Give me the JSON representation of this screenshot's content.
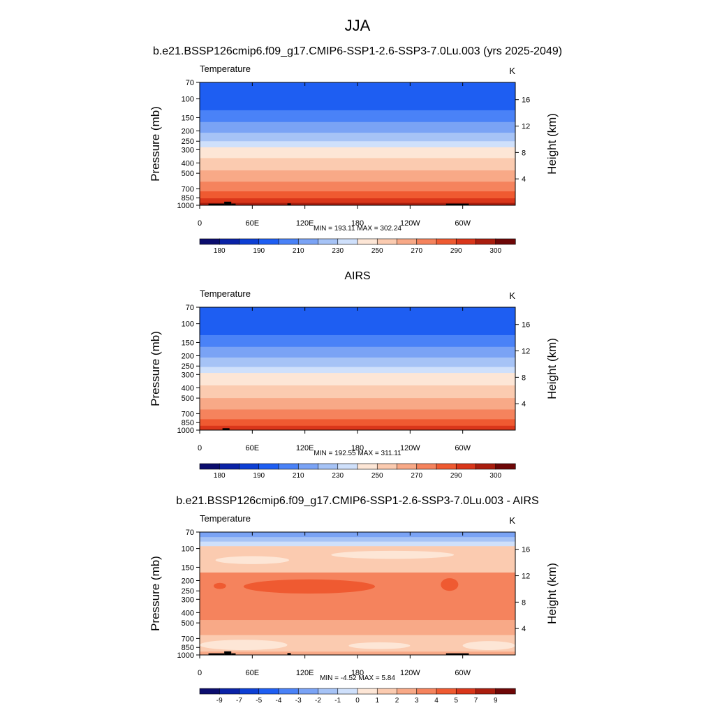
{
  "figure": {
    "title": "JJA"
  },
  "axes_common": {
    "ylabel_left": "Pressure (mb)",
    "ylabel_right": "Height (km)",
    "pressure_ticks": [
      70,
      100,
      150,
      200,
      250,
      300,
      400,
      500,
      700,
      850,
      1000
    ],
    "height_ticks": [
      4,
      8,
      12,
      16
    ],
    "x_ticks": [
      "0",
      "60E",
      "120E",
      "180",
      "120W",
      "60W"
    ],
    "x_range_deg": [
      0,
      360
    ]
  },
  "chart_data": [
    {
      "type": "heatmap",
      "title": "b.e21.BSSP126cmip6.f09_g17.CMIP6-SSP1-2.6-SSP3-7.0Lu.003 (yrs 2025-2049)",
      "left_label": "Temperature",
      "right_label": "K",
      "stats": "MIN = 193.11  MAX = 302.24",
      "colorbar": {
        "colors": [
          "#0b0d6e",
          "#0a22a6",
          "#0d3fd4",
          "#1e5ef2",
          "#4a82f7",
          "#7aa3f5",
          "#a6c3f6",
          "#cfe0fb",
          "#fde6d6",
          "#fbcbb0",
          "#f8a987",
          "#f5835d",
          "#ef5a31",
          "#d9361a",
          "#a91d0e",
          "#6e0707"
        ],
        "labels": [
          "180",
          "190",
          "210",
          "230",
          "250",
          "270",
          "290",
          "300"
        ]
      },
      "bands": [
        {
          "p": 70,
          "color": "#1e5ef2"
        },
        {
          "p": 128,
          "color": "#4a82f7"
        },
        {
          "p": 165,
          "color": "#7aa3f5"
        },
        {
          "p": 208,
          "color": "#a6c3f6"
        },
        {
          "p": 250,
          "color": "#cfe0fb"
        },
        {
          "p": 285,
          "color": "#fde6d6"
        },
        {
          "p": 360,
          "color": "#fbcbb0"
        },
        {
          "p": 470,
          "color": "#f8a987"
        },
        {
          "p": 600,
          "color": "#f5835d"
        },
        {
          "p": 740,
          "color": "#ef5a31"
        },
        {
          "p": 860,
          "color": "#d9361a"
        },
        {
          "p": 950,
          "color": "#a91d0e"
        }
      ],
      "blobs": [],
      "terrain": [
        {
          "lon": [
            10,
            28
          ],
          "ptop": 965
        },
        {
          "lon": [
            28,
            36
          ],
          "ptop": 925
        },
        {
          "lon": [
            36,
            41
          ],
          "ptop": 965
        },
        {
          "lon": [
            100,
            104
          ],
          "ptop": 960
        },
        {
          "lon": [
            281,
            307
          ],
          "ptop": 965
        }
      ]
    },
    {
      "type": "heatmap",
      "title": "AIRS",
      "left_label": "Temperature",
      "right_label": "K",
      "stats": "MIN = 192.55  MAX = 311.11",
      "colorbar": {
        "colors": [
          "#0b0d6e",
          "#0a22a6",
          "#0d3fd4",
          "#1e5ef2",
          "#4a82f7",
          "#7aa3f5",
          "#a6c3f6",
          "#cfe0fb",
          "#fde6d6",
          "#fbcbb0",
          "#f8a987",
          "#f5835d",
          "#ef5a31",
          "#d9361a",
          "#a91d0e",
          "#6e0707"
        ],
        "labels": [
          "180",
          "190",
          "210",
          "230",
          "250",
          "270",
          "290",
          "300"
        ]
      },
      "bands": [
        {
          "p": 70,
          "color": "#1e5ef2"
        },
        {
          "p": 128,
          "color": "#4a82f7"
        },
        {
          "p": 165,
          "color": "#7aa3f5"
        },
        {
          "p": 208,
          "color": "#a6c3f6"
        },
        {
          "p": 255,
          "color": "#cfe0fb"
        },
        {
          "p": 290,
          "color": "#fde6d6"
        },
        {
          "p": 380,
          "color": "#fbcbb0"
        },
        {
          "p": 500,
          "color": "#f8a987"
        },
        {
          "p": 640,
          "color": "#f5835d"
        },
        {
          "p": 790,
          "color": "#ef5a31"
        },
        {
          "p": 910,
          "color": "#d9361a"
        }
      ],
      "blobs": [],
      "terrain": [
        {
          "lon": [
            26,
            34
          ],
          "ptop": 960
        }
      ]
    },
    {
      "type": "heatmap",
      "title": "b.e21.BSSP126cmip6.f09_g17.CMIP6-SSP1-2.6-SSP3-7.0Lu.003 - AIRS",
      "left_label": "Temperature",
      "right_label": "K",
      "stats": "MIN =  -4.52  MAX =   5.84",
      "colorbar": {
        "colors": [
          "#0b0d6e",
          "#0a22a6",
          "#0d3fd4",
          "#1e5ef2",
          "#4a82f7",
          "#7aa3f5",
          "#a6c3f6",
          "#cfe0fb",
          "#fde6d6",
          "#fbcbb0",
          "#f8a987",
          "#f5835d",
          "#ef5a31",
          "#d9361a",
          "#a91d0e",
          "#6e0707"
        ],
        "labels": [
          "-9",
          "-7",
          "-5",
          "-4",
          "-3",
          "-2",
          "-1",
          "0",
          "1",
          "2",
          "3",
          "4",
          "5",
          "7",
          "9"
        ]
      },
      "bands": [
        {
          "p": 70,
          "color": "#7aa3f5"
        },
        {
          "p": 78,
          "color": "#a6c3f6"
        },
        {
          "p": 86,
          "color": "#cfe0fb"
        },
        {
          "p": 95,
          "color": "#fbcbb0"
        },
        {
          "p": 168,
          "color": "#f5835d"
        },
        {
          "p": 470,
          "color": "#f8a987"
        },
        {
          "p": 650,
          "color": "#fbcbb0"
        },
        {
          "p": 930,
          "color": "#f8a987"
        }
      ],
      "blobs": [
        {
          "lon": [
            18,
            102
          ],
          "p": [
            118,
            140
          ],
          "color": "#fde6d6"
        },
        {
          "lon": [
            150,
            290
          ],
          "p": [
            105,
            125
          ],
          "color": "#fde6d6"
        },
        {
          "lon": [
            50,
            200
          ],
          "p": [
            195,
            265
          ],
          "color": "#ef5a31"
        },
        {
          "lon": [
            16,
            30
          ],
          "p": [
            210,
            240
          ],
          "color": "#ef5a31"
        },
        {
          "lon": [
            275,
            295
          ],
          "p": [
            190,
            250
          ],
          "color": "#ef5a31"
        },
        {
          "lon": [
            0,
            100
          ],
          "p": [
            720,
            900
          ],
          "color": "#fde6d6"
        },
        {
          "lon": [
            170,
            240
          ],
          "p": [
            760,
            880
          ],
          "color": "#fde6d6"
        },
        {
          "lon": [
            300,
            360
          ],
          "p": [
            740,
            900
          ],
          "color": "#fde6d6"
        }
      ],
      "terrain": [
        {
          "lon": [
            10,
            28
          ],
          "ptop": 965
        },
        {
          "lon": [
            28,
            36
          ],
          "ptop": 925
        },
        {
          "lon": [
            36,
            41
          ],
          "ptop": 965
        },
        {
          "lon": [
            100,
            104
          ],
          "ptop": 960
        },
        {
          "lon": [
            281,
            307
          ],
          "ptop": 965
        }
      ]
    }
  ]
}
